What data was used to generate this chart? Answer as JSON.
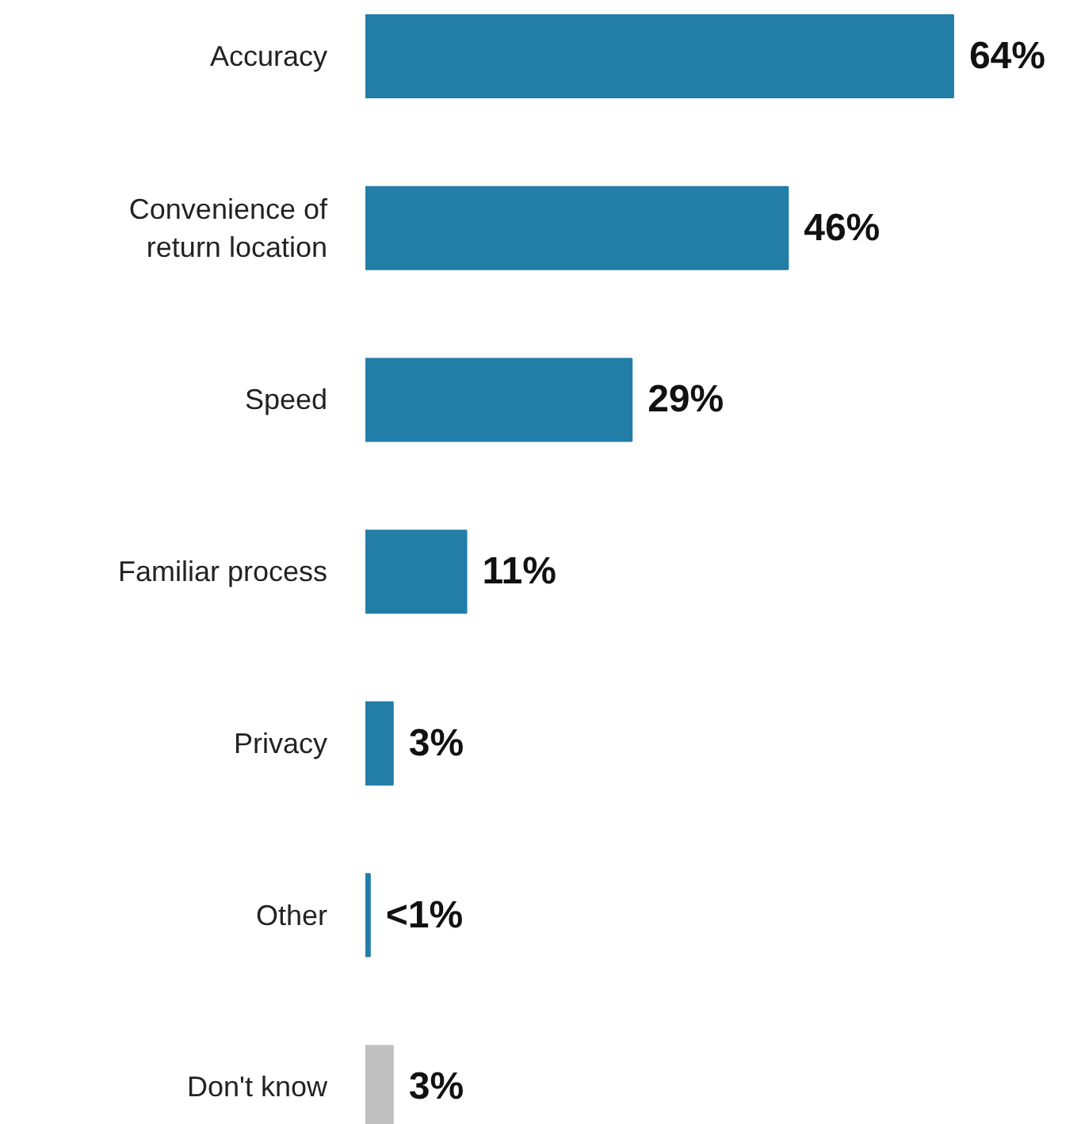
{
  "chart_data": {
    "type": "bar",
    "orientation": "horizontal",
    "categories": [
      "Accuracy",
      "Convenience of return location",
      "Speed",
      "Familiar process",
      "Privacy",
      "Other",
      "Don't know"
    ],
    "values": [
      64,
      46,
      29,
      11,
      3,
      0.5,
      3
    ],
    "colors": [
      "#237ea7",
      "#237ea7",
      "#237ea7",
      "#237ea7",
      "#237ea7",
      "#237ea7",
      "#c0c0c0"
    ],
    "value_labels": [
      "64%",
      "46%",
      "29%",
      "11%",
      "3%",
      "<1%",
      "3%"
    ],
    "tick_labels": "y",
    "grid": false
  }
}
